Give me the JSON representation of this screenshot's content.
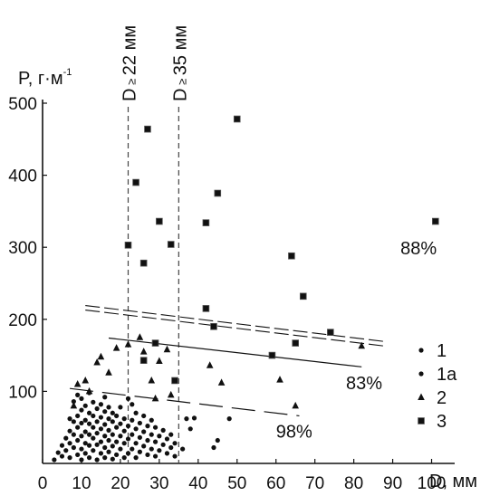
{
  "chart_data": {
    "type": "scatter",
    "xlabel": "D, мм",
    "ylabel_main": "P, г·м",
    "ylabel_exp": "-1",
    "xlim": [
      0,
      105
    ],
    "ylim": [
      0,
      500
    ],
    "xticks": [
      "0",
      "10",
      "20",
      "30",
      "40",
      "50",
      "60",
      "70",
      "80",
      "90",
      "100"
    ],
    "yticks": [
      "100",
      "200",
      "300",
      "400",
      "500"
    ],
    "xtick_values": [
      0,
      10,
      20,
      30,
      40,
      50,
      60,
      70,
      80,
      90,
      100
    ],
    "ytick_values": [
      100,
      200,
      300,
      400,
      500
    ],
    "thresholds": [
      {
        "x": 22,
        "label_main": "D",
        "label_sym": "≥",
        "label_val": "22 мм"
      },
      {
        "x": 35,
        "label_main": "D",
        "label_sym": "≥",
        "label_val": "35 мм"
      }
    ],
    "annotations": [
      {
        "text": "88%",
        "x": 92,
        "y": 290
      },
      {
        "text": "83%",
        "x": 78,
        "y": 103
      },
      {
        "text": "98%",
        "x": 60,
        "y": 36
      }
    ],
    "legend_placement": "right",
    "legend": [
      {
        "symbol": "circle",
        "label": "1"
      },
      {
        "symbol": "circle",
        "label": "1a"
      },
      {
        "symbol": "triangle",
        "label": "2"
      },
      {
        "symbol": "square",
        "label": "3"
      }
    ],
    "fit_lines": [
      {
        "series": "1",
        "style": "long-dash",
        "x": [
          7,
          66
        ],
        "y": [
          104,
          66
        ]
      },
      {
        "series": "2",
        "style": "solid",
        "x": [
          17,
          82
        ],
        "y": [
          174,
          134
        ]
      },
      {
        "series": "3",
        "style": "double-dash",
        "x": [
          11,
          88
        ],
        "y": [
          216,
          166
        ]
      }
    ],
    "series": [
      {
        "name": "1",
        "marker": "circle",
        "points": [
          [
            3,
            5
          ],
          [
            4,
            15
          ],
          [
            5,
            10
          ],
          [
            5,
            25
          ],
          [
            6,
            18
          ],
          [
            6,
            35
          ],
          [
            7,
            8
          ],
          [
            7,
            28
          ],
          [
            7,
            45
          ],
          [
            7,
            62
          ],
          [
            8,
            22
          ],
          [
            8,
            40
          ],
          [
            8,
            58
          ],
          [
            8,
            86
          ],
          [
            9,
            12
          ],
          [
            9,
            32
          ],
          [
            9,
            50
          ],
          [
            9,
            66
          ],
          [
            9,
            95
          ],
          [
            10,
            5
          ],
          [
            10,
            20
          ],
          [
            10,
            38
          ],
          [
            10,
            56
          ],
          [
            10,
            74
          ],
          [
            10,
            90
          ],
          [
            11,
            14
          ],
          [
            11,
            28
          ],
          [
            11,
            44
          ],
          [
            11,
            60
          ],
          [
            11,
            80
          ],
          [
            12,
            8
          ],
          [
            12,
            25
          ],
          [
            12,
            40
          ],
          [
            12,
            55
          ],
          [
            12,
            70
          ],
          [
            12,
            98
          ],
          [
            13,
            18
          ],
          [
            13,
            35
          ],
          [
            13,
            50
          ],
          [
            13,
            66
          ],
          [
            13,
            85
          ],
          [
            14,
            5
          ],
          [
            14,
            26
          ],
          [
            14,
            42
          ],
          [
            14,
            58
          ],
          [
            14,
            76
          ],
          [
            15,
            14
          ],
          [
            15,
            30
          ],
          [
            15,
            48
          ],
          [
            15,
            64
          ],
          [
            15,
            82
          ],
          [
            16,
            8
          ],
          [
            16,
            22
          ],
          [
            16,
            38
          ],
          [
            16,
            54
          ],
          [
            16,
            72
          ],
          [
            16,
            92
          ],
          [
            17,
            16
          ],
          [
            17,
            32
          ],
          [
            17,
            46
          ],
          [
            17,
            62
          ],
          [
            17,
            78
          ],
          [
            18,
            6
          ],
          [
            18,
            24
          ],
          [
            18,
            40
          ],
          [
            18,
            58
          ],
          [
            18,
            70
          ],
          [
            19,
            12
          ],
          [
            19,
            30
          ],
          [
            19,
            50
          ],
          [
            19,
            66
          ],
          [
            20,
            20
          ],
          [
            20,
            38
          ],
          [
            20,
            55
          ],
          [
            20,
            78
          ],
          [
            21,
            8
          ],
          [
            21,
            28
          ],
          [
            21,
            45
          ],
          [
            21,
            62
          ],
          [
            22,
            14
          ],
          [
            22,
            34
          ],
          [
            22,
            52
          ],
          [
            22,
            90
          ],
          [
            23,
            20
          ],
          [
            23,
            40
          ],
          [
            23,
            60
          ],
          [
            23,
            82
          ],
          [
            24,
            8
          ],
          [
            24,
            28
          ],
          [
            24,
            48
          ],
          [
            24,
            70
          ],
          [
            25,
            16
          ],
          [
            25,
            36
          ],
          [
            25,
            56
          ],
          [
            26,
            24
          ],
          [
            26,
            44
          ],
          [
            26,
            66
          ],
          [
            27,
            12
          ],
          [
            27,
            32
          ],
          [
            27,
            52
          ],
          [
            28,
            20
          ],
          [
            28,
            40
          ],
          [
            28,
            60
          ],
          [
            29,
            10
          ],
          [
            29,
            30
          ],
          [
            29,
            50
          ],
          [
            30,
            18
          ],
          [
            30,
            38
          ],
          [
            31,
            26
          ],
          [
            31,
            46
          ],
          [
            32,
            14
          ],
          [
            32,
            34
          ],
          [
            33,
            22
          ],
          [
            33,
            40
          ],
          [
            34,
            10
          ],
          [
            34,
            28
          ]
        ]
      },
      {
        "name": "1a",
        "marker": "circle",
        "points": [
          [
            36,
            20
          ],
          [
            37,
            62
          ],
          [
            38,
            48
          ],
          [
            39,
            63
          ],
          [
            44,
            22
          ],
          [
            45,
            32
          ],
          [
            48,
            62
          ]
        ]
      },
      {
        "name": "2",
        "marker": "triangle",
        "points": [
          [
            8,
            80
          ],
          [
            9,
            110
          ],
          [
            11,
            115
          ],
          [
            12,
            100
          ],
          [
            14,
            140
          ],
          [
            15,
            148
          ],
          [
            17,
            126
          ],
          [
            19,
            160
          ],
          [
            22,
            165
          ],
          [
            25,
            175
          ],
          [
            26,
            155
          ],
          [
            28,
            115
          ],
          [
            29,
            90
          ],
          [
            30,
            142
          ],
          [
            32,
            158
          ],
          [
            33,
            95
          ],
          [
            43,
            136
          ],
          [
            46,
            112
          ],
          [
            61,
            116
          ],
          [
            65,
            80
          ],
          [
            82,
            163
          ]
        ]
      },
      {
        "name": "3",
        "marker": "square",
        "points": [
          [
            27,
            464
          ],
          [
            24,
            390
          ],
          [
            50,
            478
          ],
          [
            45,
            375
          ],
          [
            30,
            336
          ],
          [
            42,
            334
          ],
          [
            22,
            303
          ],
          [
            33,
            304
          ],
          [
            26,
            278
          ],
          [
            64,
            288
          ],
          [
            67,
            232
          ],
          [
            101,
            336
          ],
          [
            42,
            215
          ],
          [
            44,
            190
          ],
          [
            59,
            150
          ],
          [
            65,
            167
          ],
          [
            74,
            182
          ],
          [
            29,
            167
          ],
          [
            26,
            143
          ],
          [
            34,
            115
          ]
        ]
      }
    ]
  }
}
